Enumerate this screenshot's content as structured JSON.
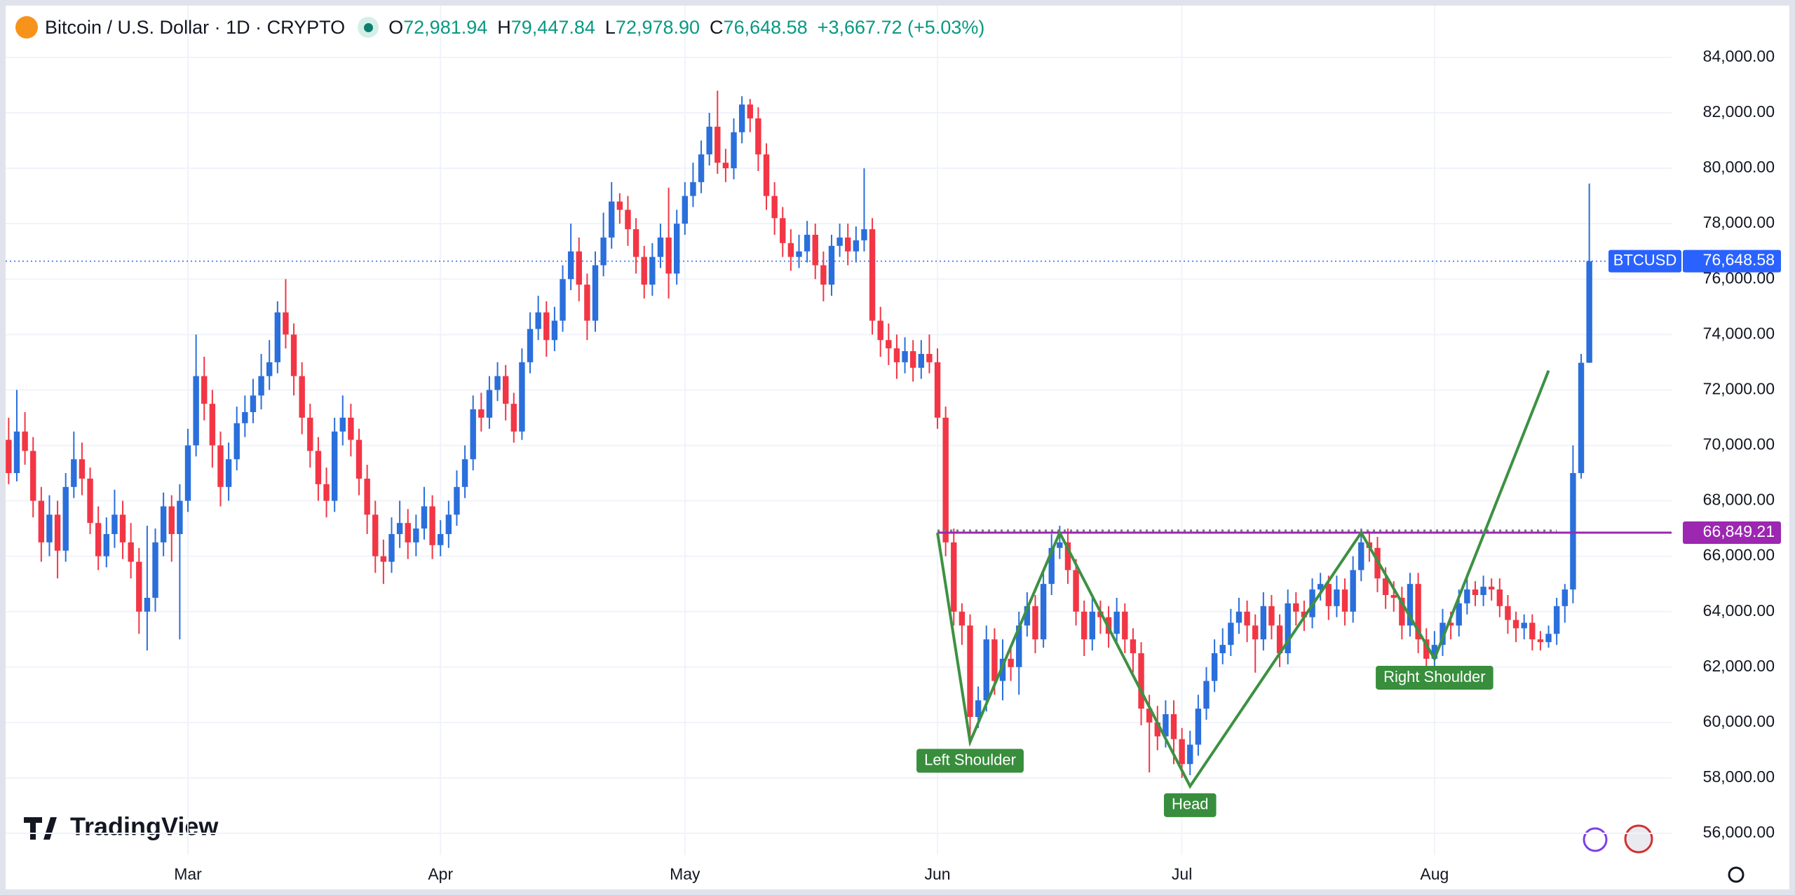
{
  "chart_data": {
    "type": "candlestick",
    "title": "Bitcoin / U.S. Dollar · 1D · CRYPTO",
    "legend_values": [
      {
        "key": "O",
        "label": "72,981.94"
      },
      {
        "key": "H",
        "label": "79,447.84"
      },
      {
        "key": "L",
        "label": "72,978.90"
      },
      {
        "key": "C",
        "label": "76,648.58"
      }
    ],
    "change": "+3,667.72 (+5.03%)",
    "brand": "TradingView",
    "up_color": "#2a6fdb",
    "down_color": "#f23645",
    "grid": true,
    "ylim": [
      55470,
      85060
    ],
    "yticks": [
      {
        "value": 56000,
        "label": "56,000.00"
      },
      {
        "value": 58000,
        "label": "58,000.00"
      },
      {
        "value": 60000,
        "label": "60,000.00"
      },
      {
        "value": 62000,
        "label": "62,000.00"
      },
      {
        "value": 64000,
        "label": "64,000.00"
      },
      {
        "value": 66000,
        "label": "66,000.00"
      },
      {
        "value": 68000,
        "label": "68,000.00"
      },
      {
        "value": 70000,
        "label": "70,000.00"
      },
      {
        "value": 72000,
        "label": "72,000.00"
      },
      {
        "value": 74000,
        "label": "74,000.00"
      },
      {
        "value": 76000,
        "label": "76,000.00"
      },
      {
        "value": 78000,
        "label": "78,000.00"
      },
      {
        "value": 80000,
        "label": "80,000.00"
      },
      {
        "value": 82000,
        "label": "82,000.00"
      },
      {
        "value": 84000,
        "label": "84,000.00"
      }
    ],
    "xticks": [
      {
        "value": 22,
        "label": "Mar"
      },
      {
        "value": 53,
        "label": "Apr"
      },
      {
        "value": 83,
        "label": "May"
      },
      {
        "value": 114,
        "label": "Jun"
      },
      {
        "value": 144,
        "label": "Jul"
      },
      {
        "value": 175,
        "label": "Aug"
      }
    ],
    "ohlc": [
      [
        70200,
        71000,
        68600,
        69000
      ],
      [
        69000,
        72000,
        68700,
        70500
      ],
      [
        70500,
        71200,
        69300,
        69800
      ],
      [
        69800,
        70300,
        67400,
        68000
      ],
      [
        68000,
        68500,
        65800,
        66500
      ],
      [
        66500,
        68200,
        66000,
        67500
      ],
      [
        67500,
        68000,
        65200,
        66200
      ],
      [
        66200,
        69000,
        65800,
        68500
      ],
      [
        68500,
        70500,
        68100,
        69500
      ],
      [
        69500,
        70100,
        68200,
        68800
      ],
      [
        68800,
        69200,
        66800,
        67200
      ],
      [
        67200,
        67800,
        65500,
        66000
      ],
      [
        66000,
        67400,
        65600,
        66800
      ],
      [
        66800,
        68400,
        66300,
        67500
      ],
      [
        67500,
        68000,
        65900,
        66500
      ],
      [
        66500,
        67200,
        65200,
        65800
      ],
      [
        65800,
        66300,
        63200,
        64000
      ],
      [
        64000,
        67100,
        62600,
        64500
      ],
      [
        64500,
        67000,
        64000,
        66500
      ],
      [
        66500,
        68300,
        66000,
        67800
      ],
      [
        67800,
        68200,
        65800,
        66800
      ],
      [
        66800,
        68600,
        63000,
        68000
      ],
      [
        68000,
        70600,
        67600,
        70000
      ],
      [
        70000,
        74000,
        69600,
        72500
      ],
      [
        72500,
        73200,
        70900,
        71500
      ],
      [
        71500,
        72000,
        69200,
        70000
      ],
      [
        70000,
        70500,
        67800,
        68500
      ],
      [
        68500,
        70100,
        68000,
        69500
      ],
      [
        69500,
        71400,
        69100,
        70800
      ],
      [
        70800,
        71800,
        70300,
        71200
      ],
      [
        71200,
        72400,
        70800,
        71800
      ],
      [
        71800,
        73300,
        71300,
        72500
      ],
      [
        72500,
        73800,
        72000,
        73000
      ],
      [
        73000,
        75200,
        72600,
        74800
      ],
      [
        74800,
        76000,
        73500,
        74000
      ],
      [
        74000,
        74400,
        71800,
        72500
      ],
      [
        72500,
        73000,
        70400,
        71000
      ],
      [
        71000,
        71500,
        69200,
        69800
      ],
      [
        69800,
        70300,
        68000,
        68600
      ],
      [
        68600,
        69200,
        67400,
        68000
      ],
      [
        68000,
        71000,
        67600,
        70500
      ],
      [
        70500,
        71800,
        70000,
        71000
      ],
      [
        71000,
        71500,
        69600,
        70200
      ],
      [
        70200,
        70600,
        68200,
        68800
      ],
      [
        68800,
        69300,
        66800,
        67500
      ],
      [
        67500,
        68000,
        65400,
        66000
      ],
      [
        66000,
        66600,
        65000,
        65800
      ],
      [
        65800,
        67400,
        65400,
        66800
      ],
      [
        66800,
        68000,
        66300,
        67200
      ],
      [
        67200,
        67700,
        65900,
        66500
      ],
      [
        66500,
        67500,
        66000,
        67000
      ],
      [
        67000,
        68500,
        66600,
        67800
      ],
      [
        67800,
        68200,
        65900,
        66400
      ],
      [
        66400,
        67300,
        66000,
        66800
      ],
      [
        66800,
        68000,
        66300,
        67500
      ],
      [
        67500,
        69100,
        67100,
        68500
      ],
      [
        68500,
        70000,
        68100,
        69500
      ],
      [
        69500,
        71800,
        69100,
        71300
      ],
      [
        71300,
        71900,
        70500,
        71000
      ],
      [
        71000,
        72500,
        70600,
        72000
      ],
      [
        72000,
        73000,
        71600,
        72500
      ],
      [
        72500,
        72900,
        70900,
        71500
      ],
      [
        71500,
        71900,
        70100,
        70500
      ],
      [
        70500,
        73500,
        70200,
        73000
      ],
      [
        73000,
        74800,
        72600,
        74200
      ],
      [
        74200,
        75400,
        73800,
        74800
      ],
      [
        74800,
        75200,
        73200,
        73800
      ],
      [
        73800,
        75000,
        73400,
        74500
      ],
      [
        74500,
        76500,
        74100,
        76000
      ],
      [
        76000,
        78000,
        75600,
        77000
      ],
      [
        77000,
        77500,
        75200,
        75800
      ],
      [
        75800,
        76200,
        73800,
        74500
      ],
      [
        74500,
        77000,
        74100,
        76500
      ],
      [
        76500,
        78400,
        76100,
        77500
      ],
      [
        77500,
        79500,
        77100,
        78800
      ],
      [
        78800,
        79100,
        78000,
        78500
      ],
      [
        78500,
        79000,
        77200,
        77800
      ],
      [
        77800,
        78200,
        76200,
        76800
      ],
      [
        76800,
        77200,
        75300,
        75800
      ],
      [
        75800,
        77300,
        75400,
        76800
      ],
      [
        76800,
        78000,
        76400,
        77500
      ],
      [
        77500,
        79300,
        75300,
        76200
      ],
      [
        76200,
        78500,
        75800,
        78000
      ],
      [
        78000,
        79500,
        77600,
        79000
      ],
      [
        79000,
        80200,
        78600,
        79500
      ],
      [
        79500,
        81000,
        79100,
        80500
      ],
      [
        80500,
        82000,
        80100,
        81500
      ],
      [
        81500,
        82800,
        79800,
        80200
      ],
      [
        80200,
        80700,
        79500,
        80000
      ],
      [
        80000,
        81800,
        79600,
        81300
      ],
      [
        81300,
        82600,
        80900,
        82300
      ],
      [
        82300,
        82500,
        81300,
        81800
      ],
      [
        81800,
        82200,
        79900,
        80500
      ],
      [
        80500,
        80900,
        78500,
        79000
      ],
      [
        79000,
        79500,
        77600,
        78200
      ],
      [
        78200,
        78600,
        76800,
        77300
      ],
      [
        77300,
        77800,
        76300,
        76800
      ],
      [
        76800,
        77600,
        76400,
        77000
      ],
      [
        77000,
        78100,
        76600,
        77600
      ],
      [
        77600,
        78000,
        76000,
        76500
      ],
      [
        76500,
        77000,
        75200,
        75800
      ],
      [
        75800,
        77600,
        75400,
        77200
      ],
      [
        77200,
        78000,
        76800,
        77500
      ],
      [
        77500,
        78000,
        76500,
        77000
      ],
      [
        77000,
        77900,
        76600,
        77400
      ],
      [
        77400,
        80000,
        77000,
        77800
      ],
      [
        77800,
        78200,
        74000,
        74500
      ],
      [
        74500,
        75000,
        73200,
        73800
      ],
      [
        73800,
        74400,
        72900,
        73500
      ],
      [
        73500,
        74000,
        72400,
        73000
      ],
      [
        73000,
        73900,
        72600,
        73400
      ],
      [
        73400,
        73800,
        72300,
        72800
      ],
      [
        72800,
        73800,
        72400,
        73300
      ],
      [
        73300,
        74000,
        72600,
        73000
      ],
      [
        73000,
        73500,
        70600,
        71000
      ],
      [
        71000,
        71400,
        66000,
        66500
      ],
      [
        66500,
        67000,
        63500,
        64000
      ],
      [
        64000,
        64300,
        62800,
        63500
      ],
      [
        63500,
        63900,
        59200,
        60200
      ],
      [
        60200,
        61300,
        59800,
        60800
      ],
      [
        60800,
        63500,
        60400,
        63000
      ],
      [
        63000,
        63400,
        61000,
        61500
      ],
      [
        61500,
        63000,
        60800,
        62300
      ],
      [
        62300,
        62800,
        61500,
        62000
      ],
      [
        62000,
        64000,
        61000,
        63500
      ],
      [
        63500,
        64700,
        63100,
        64200
      ],
      [
        64200,
        64600,
        62500,
        63000
      ],
      [
        63000,
        65500,
        62700,
        65000
      ],
      [
        65000,
        66800,
        64600,
        66300
      ],
      [
        66300,
        67100,
        65900,
        66500
      ],
      [
        66500,
        67000,
        65000,
        65500
      ],
      [
        65500,
        65900,
        63500,
        64000
      ],
      [
        64000,
        64400,
        62400,
        63000
      ],
      [
        63000,
        64500,
        62600,
        64000
      ],
      [
        64000,
        64400,
        63200,
        63800
      ],
      [
        63800,
        64200,
        62700,
        63200
      ],
      [
        63200,
        64500,
        62800,
        64000
      ],
      [
        64000,
        64300,
        62500,
        63000
      ],
      [
        63000,
        63400,
        61800,
        62500
      ],
      [
        62500,
        62900,
        59900,
        60500
      ],
      [
        60500,
        61000,
        58200,
        60000
      ],
      [
        60000,
        60600,
        59000,
        59500
      ],
      [
        59500,
        60800,
        59100,
        60300
      ],
      [
        60300,
        60800,
        58500,
        59400
      ],
      [
        59400,
        59800,
        58000,
        58500
      ],
      [
        58500,
        59700,
        58100,
        59200
      ],
      [
        59200,
        61000,
        58800,
        60500
      ],
      [
        60500,
        62000,
        60100,
        61500
      ],
      [
        61500,
        63000,
        61100,
        62500
      ],
      [
        62500,
        63400,
        62100,
        62800
      ],
      [
        62800,
        64100,
        62400,
        63600
      ],
      [
        63600,
        64500,
        63200,
        64000
      ],
      [
        64000,
        64400,
        62900,
        63500
      ],
      [
        63500,
        63900,
        61800,
        63000
      ],
      [
        63000,
        64700,
        62600,
        64200
      ],
      [
        64200,
        64600,
        63000,
        63500
      ],
      [
        63500,
        63900,
        62000,
        62500
      ],
      [
        62500,
        64800,
        62100,
        64300
      ],
      [
        64300,
        64700,
        63500,
        64000
      ],
      [
        64000,
        64400,
        63300,
        63800
      ],
      [
        63800,
        65200,
        63400,
        64800
      ],
      [
        64800,
        65400,
        64400,
        65000
      ],
      [
        65000,
        65300,
        63700,
        64200
      ],
      [
        64200,
        65300,
        63800,
        64800
      ],
      [
        64800,
        65200,
        63500,
        64000
      ],
      [
        64000,
        66000,
        63600,
        65500
      ],
      [
        65500,
        67000,
        65100,
        66500
      ],
      [
        66500,
        66900,
        65800,
        66300
      ],
      [
        66300,
        66700,
        64700,
        65200
      ],
      [
        65200,
        65600,
        64100,
        64600
      ],
      [
        64600,
        65100,
        64000,
        64500
      ],
      [
        64500,
        64900,
        63000,
        63500
      ],
      [
        63500,
        65400,
        63100,
        65000
      ],
      [
        65000,
        65400,
        62500,
        63000
      ],
      [
        63000,
        63400,
        62000,
        62300
      ],
      [
        62300,
        63300,
        61900,
        62800
      ],
      [
        62800,
        64100,
        62400,
        63600
      ],
      [
        63600,
        64000,
        63000,
        63500
      ],
      [
        63500,
        64800,
        63100,
        64300
      ],
      [
        64300,
        65300,
        63900,
        64800
      ],
      [
        64800,
        65100,
        64200,
        64600
      ],
      [
        64600,
        65300,
        64200,
        64900
      ],
      [
        64900,
        65200,
        64400,
        64800
      ],
      [
        64800,
        65200,
        63800,
        64200
      ],
      [
        64200,
        64600,
        63200,
        63700
      ],
      [
        63700,
        64000,
        62900,
        63400
      ],
      [
        63400,
        63900,
        63000,
        63600
      ],
      [
        63600,
        63900,
        62600,
        63000
      ],
      [
        63000,
        63300,
        62600,
        62900
      ],
      [
        62900,
        63500,
        62700,
        63200
      ],
      [
        63200,
        64500,
        62800,
        64200
      ],
      [
        64200,
        65000,
        63600,
        64800
      ],
      [
        64800,
        70000,
        64300,
        69000
      ],
      [
        69000,
        73300,
        68800,
        72981
      ],
      [
        72981.94,
        79447.84,
        72978.9,
        76648.58
      ]
    ],
    "price_line": {
      "name": "BTCUSD",
      "value": 76648.58,
      "label": "76,648.58",
      "color": "#2962ff"
    },
    "level_line": {
      "value": 66849.21,
      "label": "66,849.21",
      "color": "#9c27b0",
      "from": 114
    },
    "pattern": {
      "color": "#3d9142",
      "points": [
        {
          "x": 114,
          "y": 66849
        },
        {
          "x": 118,
          "y": 59300,
          "label": "Left Shoulder"
        },
        {
          "x": 129,
          "y": 66849
        },
        {
          "x": 145,
          "y": 57700,
          "label": "Head"
        },
        {
          "x": 166,
          "y": 66849
        },
        {
          "x": 175,
          "y": 62300,
          "label": "Right Shoulder"
        },
        {
          "x": 189,
          "y": 72700
        }
      ]
    }
  }
}
